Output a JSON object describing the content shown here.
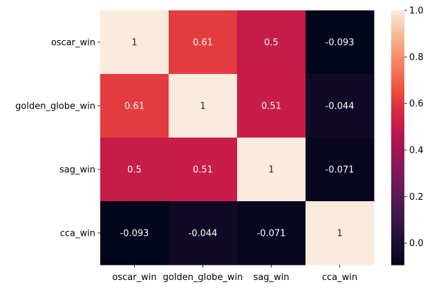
{
  "chart_data": {
    "type": "heatmap",
    "title": "",
    "xlabel": "",
    "ylabel": "",
    "x_categories": [
      "oscar_win",
      "golden_globe_win",
      "sag_win",
      "cca_win"
    ],
    "y_categories": [
      "oscar_win",
      "golden_globe_win",
      "sag_win",
      "cca_win"
    ],
    "values": [
      [
        1,
        0.61,
        0.5,
        -0.093
      ],
      [
        0.61,
        1,
        0.51,
        -0.044
      ],
      [
        0.5,
        0.51,
        1,
        -0.071
      ],
      [
        -0.093,
        -0.044,
        -0.071,
        1
      ]
    ],
    "annotations": [
      [
        "1",
        "0.61",
        "0.5",
        "-0.093"
      ],
      [
        "0.61",
        "1",
        "0.51",
        "-0.044"
      ],
      [
        "0.5",
        "0.51",
        "1",
        "-0.071"
      ],
      [
        "-0.093",
        "-0.044",
        "-0.071",
        "1"
      ]
    ],
    "colormap": "rocket",
    "colorbar": {
      "vmin": -0.093,
      "vmax": 1.0,
      "ticks": [
        0.0,
        0.2,
        0.4,
        0.6,
        0.8,
        1.0
      ],
      "tick_labels": [
        "0.0",
        "0.2",
        "0.4",
        "0.6",
        "0.8",
        "1.0"
      ]
    },
    "grid": false,
    "legend": "colorbar-right"
  }
}
